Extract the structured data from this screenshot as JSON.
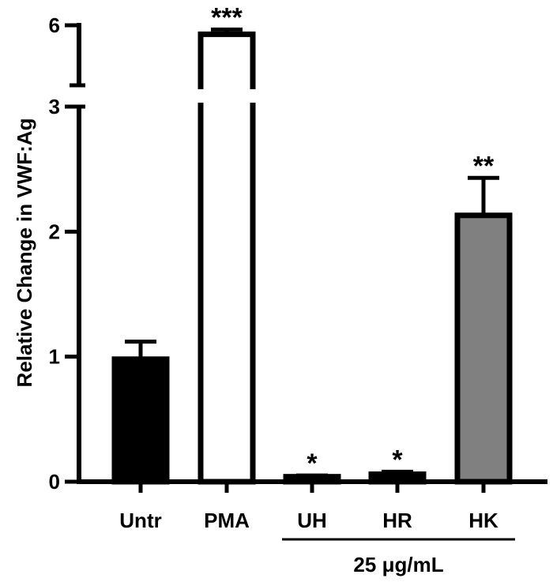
{
  "chart_data": {
    "type": "bar",
    "y_label": "Relative  Change in VWF:Ag",
    "categories": [
      "Untr",
      "PMA",
      "UH",
      "HR",
      "HK"
    ],
    "values": [
      0.98,
      5.85,
      0.04,
      0.06,
      2.13
    ],
    "errors": [
      0.14,
      0.08,
      0.01,
      0.02,
      0.3
    ],
    "colors": [
      "#000000",
      "#ffffff",
      "#000000",
      "#000000",
      "#808080"
    ],
    "significance": [
      null,
      "***",
      "*",
      "*",
      "**"
    ],
    "group": {
      "label": "25 μg/mL",
      "members": [
        "UH",
        "HR",
        "HK"
      ]
    },
    "ylim": [
      0,
      6
    ],
    "axis_break": [
      3,
      5
    ],
    "yticks": [
      0,
      1,
      2,
      3,
      6
    ]
  }
}
